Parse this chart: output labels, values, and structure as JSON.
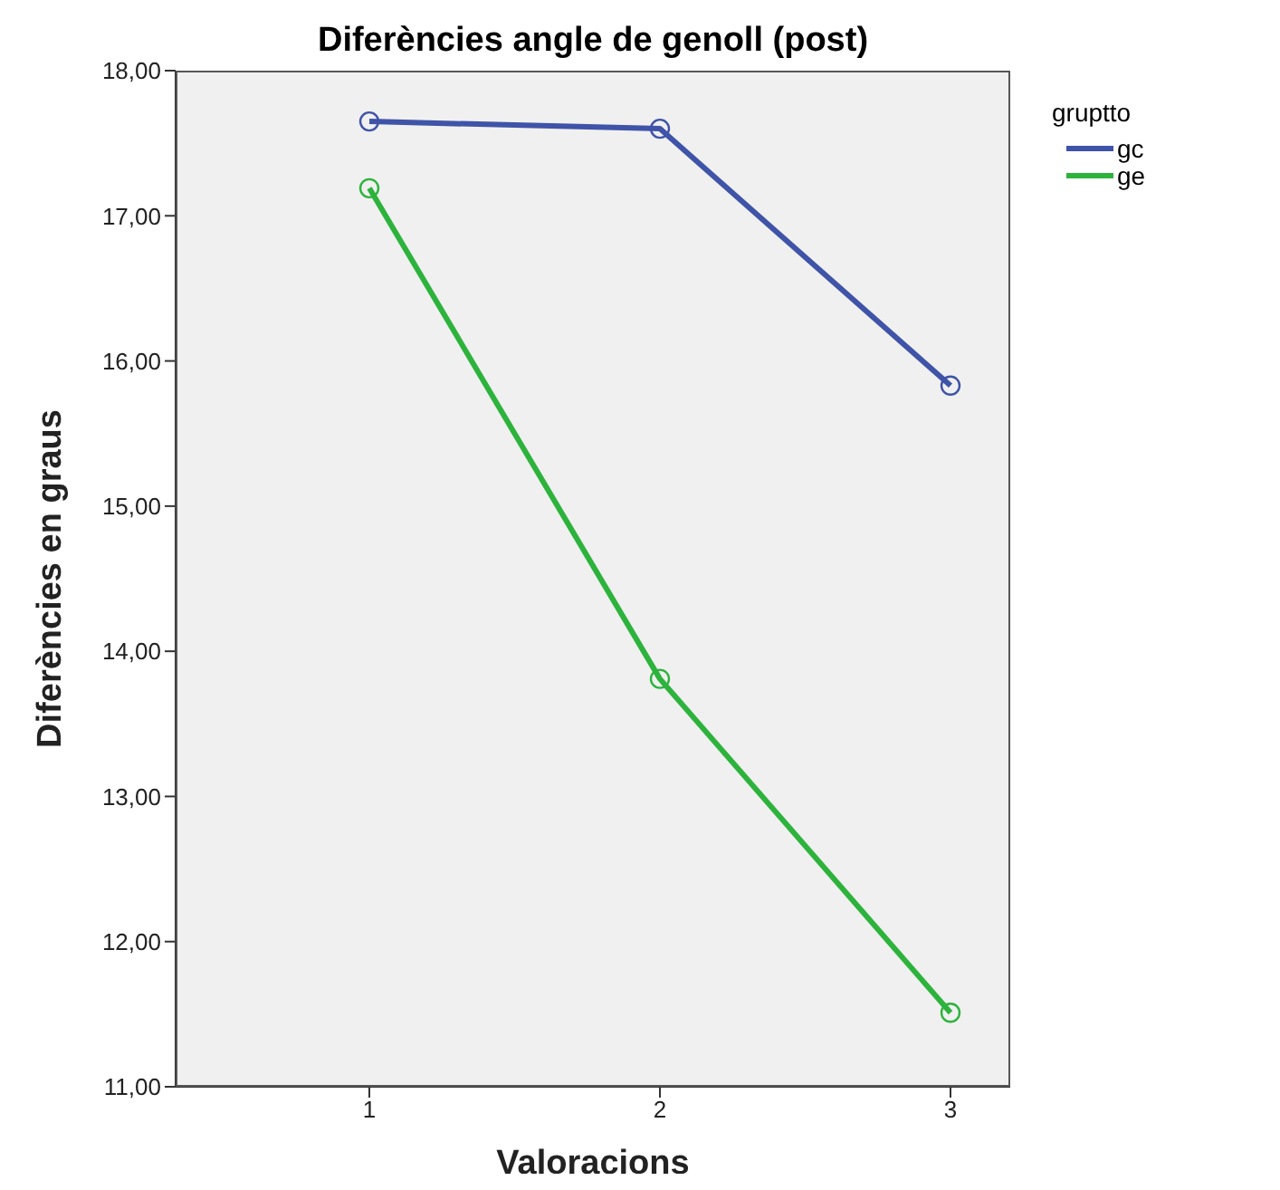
{
  "chart_data": {
    "type": "line",
    "title": "Diferències angle de genoll (post)",
    "xlabel": "Valoracions",
    "ylabel": "Diferències en graus",
    "legend_title": "gruptto",
    "categories": [
      "1",
      "2",
      "3"
    ],
    "series": [
      {
        "name": "gc",
        "color": "#3f53a8",
        "values": [
          17.65,
          17.6,
          15.83
        ]
      },
      {
        "name": "ge",
        "color": "#2db33c",
        "values": [
          17.19,
          13.81,
          11.51
        ]
      }
    ],
    "ylim": [
      11,
      18
    ],
    "yticks": [
      {
        "value": 11,
        "label": "11,00"
      },
      {
        "value": 12,
        "label": "12,00"
      },
      {
        "value": 13,
        "label": "13,00"
      },
      {
        "value": 14,
        "label": "14,00"
      },
      {
        "value": 15,
        "label": "15,00"
      },
      {
        "value": 16,
        "label": "16,00"
      },
      {
        "value": 17,
        "label": "17,00"
      },
      {
        "value": 18,
        "label": "18,00"
      }
    ],
    "grid": false,
    "legend": "top right",
    "marker": "circle",
    "line_style": "solid"
  }
}
